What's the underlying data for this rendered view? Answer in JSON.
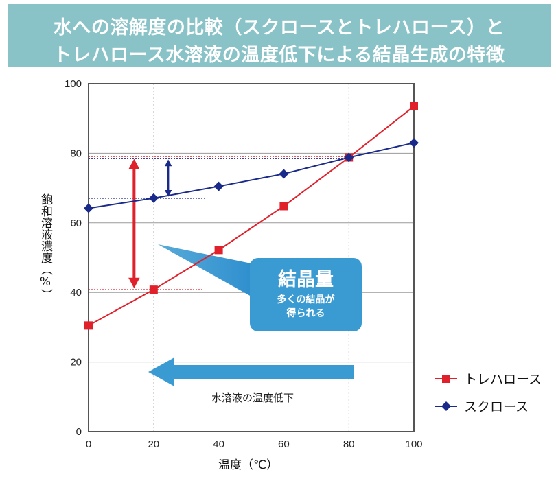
{
  "title": {
    "line1": "水への溶解度の比較（スクロースとトレハロース）と",
    "line2": "トレハロース水溶液の温度低下による結晶生成の特徴"
  },
  "chart_data": {
    "type": "line",
    "x": [
      0,
      20,
      40,
      60,
      80,
      100
    ],
    "series": [
      {
        "name": "トレハロース",
        "color": "#e0202a",
        "marker": "square",
        "values": [
          30.5,
          40.8,
          52.2,
          64.8,
          78.8,
          93.5
        ]
      },
      {
        "name": "スクロース",
        "color": "#1a2a8a",
        "marker": "diamond",
        "values": [
          64.2,
          67.1,
          70.5,
          74.1,
          78.8,
          83.0
        ]
      }
    ],
    "xlabel": "温度（℃）",
    "ylabel": "飽和溶液濃度（%）",
    "xlim": [
      0,
      100
    ],
    "ylim": [
      0,
      100
    ],
    "xticks": [
      "0",
      "20",
      "40",
      "60",
      "80",
      "100"
    ],
    "yticks": [
      "0",
      "20",
      "40",
      "60",
      "80",
      "100"
    ],
    "grid": "horizontal",
    "legend": "right",
    "annotations": {
      "crystal_label": "結晶量",
      "crystal_sub1": "多くの結晶が",
      "crystal_sub2": "得られる",
      "cooling_label": "水溶液の温度低下"
    },
    "reference_levels": {
      "trehalose_high": 78.8,
      "trehalose_low": 40.8,
      "sucrose_high": 78.8,
      "sucrose_low": 67.1
    }
  },
  "colors": {
    "title_band": "#89c3c7",
    "trehalose": "#e0202a",
    "sucrose": "#1a2a8a",
    "callout": "#3a9bd2"
  }
}
